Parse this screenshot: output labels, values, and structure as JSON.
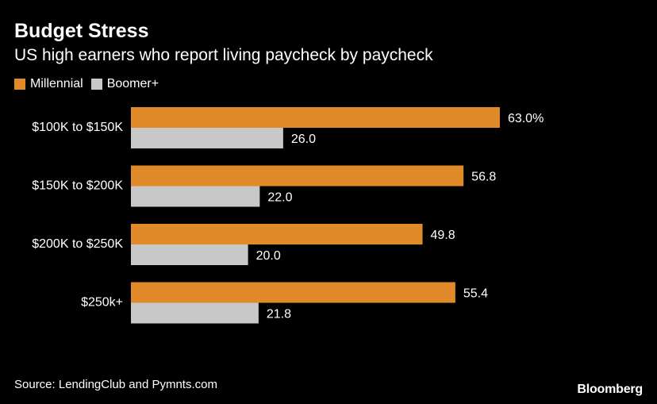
{
  "chart_data": {
    "type": "bar",
    "orientation": "horizontal",
    "title": "Budget Stress",
    "subtitle": "US high earners who report living paycheck by paycheck",
    "categories": [
      "$100K to $150K",
      "$150K to $200K",
      "$200K to $250K",
      "$250k+"
    ],
    "series": [
      {
        "name": "Millennial",
        "color": "#E08A2A",
        "values": [
          63.0,
          56.8,
          49.8,
          55.4
        ],
        "labels": [
          "63.0%",
          "56.8",
          "49.8",
          "55.4"
        ]
      },
      {
        "name": "Boomer+",
        "color": "#C8C8C8",
        "values": [
          26.0,
          22.0,
          20.0,
          21.8
        ],
        "labels": [
          "26.0",
          "22.0",
          "20.0",
          "21.8"
        ]
      }
    ],
    "xlim": [
      0,
      70
    ],
    "grid": false,
    "legend_position": "top-left"
  },
  "source": "Source: LendingClub and Pymnts.com",
  "brand": "Bloomberg"
}
